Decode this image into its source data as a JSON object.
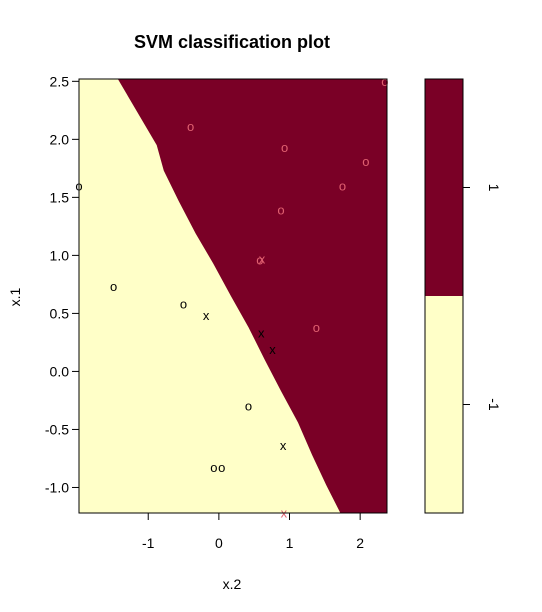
{
  "chart_data": {
    "type": "scatter",
    "title": "SVM classification plot",
    "xlabel": "x.2",
    "ylabel": "x.1",
    "xlim": [
      -1.98,
      2.38
    ],
    "ylim": [
      -1.22,
      2.52
    ],
    "x_ticks": [
      "-1",
      "0",
      "1",
      "2"
    ],
    "x_tick_values": [
      -1,
      0,
      1,
      2
    ],
    "y_ticks": [
      "-1.0",
      "-0.5",
      "0.0",
      "0.5",
      "1.0",
      "1.5",
      "2.0",
      "2.5"
    ],
    "y_tick_values": [
      -1.0,
      -0.5,
      0.0,
      0.5,
      1.0,
      1.5,
      2.0,
      2.5
    ],
    "grid": false,
    "legend": {
      "placement": "right",
      "levels": [
        "1",
        "-1"
      ],
      "colors": [
        "#7a0026",
        "#ffffc8"
      ]
    },
    "region_colors": {
      "class_1": "#7a0026",
      "class_neg1": "#ffffc8"
    },
    "decision_boundary": [
      [
        -1.43,
        2.52
      ],
      [
        -0.88,
        1.95
      ],
      [
        -0.78,
        1.73
      ],
      [
        -0.57,
        1.47
      ],
      [
        -0.33,
        1.19
      ],
      [
        -0.08,
        0.93
      ],
      [
        0.17,
        0.65
      ],
      [
        0.42,
        0.38
      ],
      [
        0.65,
        0.1
      ],
      [
        0.88,
        -0.17
      ],
      [
        1.12,
        -0.44
      ],
      [
        1.32,
        -0.72
      ],
      [
        1.52,
        -0.98
      ],
      [
        1.72,
        -1.22
      ]
    ],
    "point_colors": {
      "1": "#e06070",
      "-1": "#000000"
    },
    "points": [
      {
        "x": -0.4,
        "y": 2.11,
        "symbol": "o",
        "class": "1"
      },
      {
        "x": 0.93,
        "y": 1.93,
        "symbol": "o",
        "class": "1"
      },
      {
        "x": 2.08,
        "y": 1.81,
        "symbol": "o",
        "class": "1"
      },
      {
        "x": 1.75,
        "y": 1.6,
        "symbol": "o",
        "class": "1"
      },
      {
        "x": 0.88,
        "y": 1.39,
        "symbol": "o",
        "class": "1"
      },
      {
        "x": 0.58,
        "y": 0.96,
        "symbol": "o",
        "class": "1"
      },
      {
        "x": 0.61,
        "y": 0.97,
        "symbol": "x",
        "class": "1"
      },
      {
        "x": 1.38,
        "y": 0.38,
        "symbol": "o",
        "class": "1"
      },
      {
        "x": 2.35,
        "y": 2.5,
        "symbol": "o",
        "class": "1"
      },
      {
        "x": 0.92,
        "y": -1.22,
        "symbol": "x",
        "class": "1"
      },
      {
        "x": -1.98,
        "y": 1.6,
        "symbol": "o",
        "class": "-1"
      },
      {
        "x": -1.49,
        "y": 0.73,
        "symbol": "o",
        "class": "-1"
      },
      {
        "x": -0.5,
        "y": 0.58,
        "symbol": "o",
        "class": "-1"
      },
      {
        "x": -0.18,
        "y": 0.48,
        "symbol": "x",
        "class": "-1"
      },
      {
        "x": 0.6,
        "y": 0.33,
        "symbol": "x",
        "class": "-1"
      },
      {
        "x": 0.76,
        "y": 0.19,
        "symbol": "x",
        "class": "-1"
      },
      {
        "x": 0.42,
        "y": -0.3,
        "symbol": "o",
        "class": "-1"
      },
      {
        "x": 0.91,
        "y": -0.64,
        "symbol": "x",
        "class": "-1"
      },
      {
        "x": -0.07,
        "y": -0.83,
        "symbol": "o",
        "class": "-1"
      },
      {
        "x": 0.04,
        "y": -0.83,
        "symbol": "o",
        "class": "-1"
      }
    ]
  }
}
